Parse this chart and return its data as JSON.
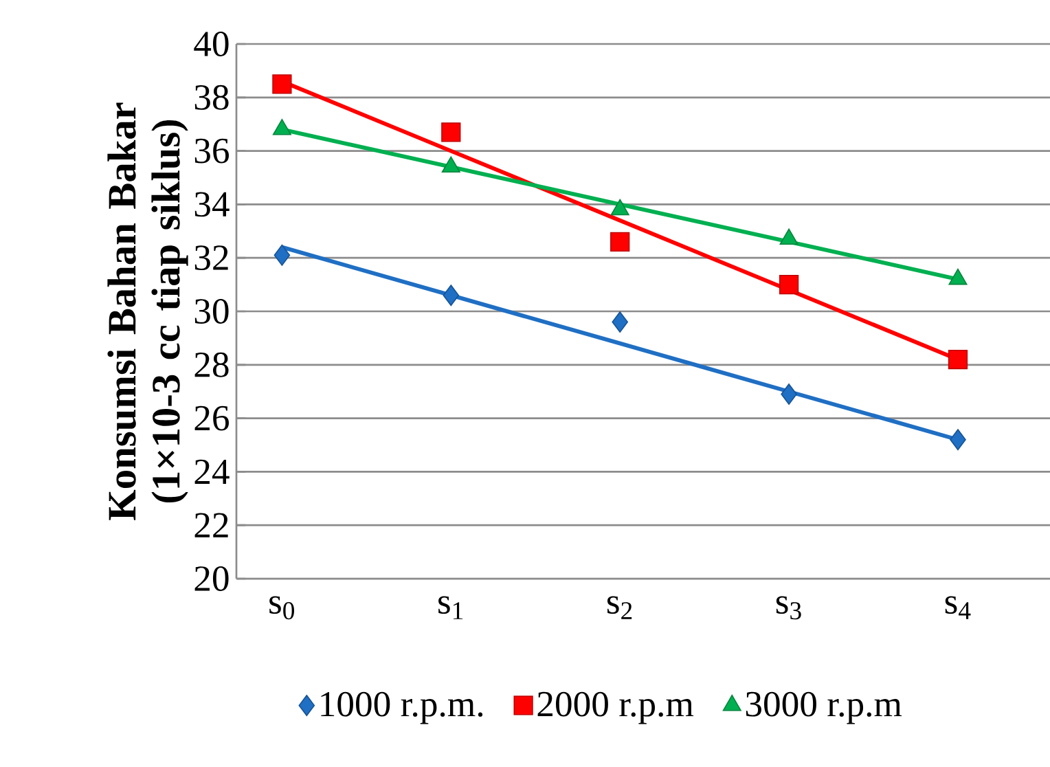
{
  "chart_data": {
    "type": "line",
    "ylabel": "Konsumsi Bahan Bakar (1×10-3 cc tiap siklus)",
    "categories": [
      "s$_{0}$",
      "s$_{1}$",
      "s$_{2}$",
      "s$_{3}$",
      "s$_{4}$"
    ],
    "ylim": [
      20,
      40
    ],
    "yticks": [
      20,
      22,
      24,
      26,
      28,
      30,
      32,
      34,
      36,
      38,
      40
    ],
    "grid": "y",
    "legend": "bottom",
    "series": [
      {
        "name": "1000 r.p.m.",
        "type": "scatter",
        "marker": "diamond",
        "color": "#1f6fc4",
        "values": [
          32.1,
          30.6,
          29.6,
          26.9,
          25.2
        ]
      },
      {
        "name": "2000 r.p.m",
        "type": "scatter",
        "marker": "square",
        "color": "#ff0000",
        "values": [
          38.5,
          36.7,
          32.6,
          31.0,
          28.2
        ]
      },
      {
        "name": "3000 r.p.m",
        "type": "scatter",
        "marker": "triangle",
        "color": "#00b050",
        "values": [
          36.8,
          35.4,
          33.8,
          32.7,
          31.2
        ]
      },
      {
        "type": "line",
        "marker": "none",
        "line_style": "solid",
        "color": "#1f6fc4",
        "values": [
          32.4,
          30.6,
          28.8,
          27.0,
          25.2
        ]
      },
      {
        "type": "line",
        "marker": "none",
        "line_style": "solid",
        "color": "#ff0000",
        "values": [
          38.6,
          36.0,
          33.4,
          30.8,
          28.2
        ]
      },
      {
        "type": "line",
        "marker": "none",
        "line_style": "solid",
        "color": "#00b050",
        "values": [
          36.8,
          35.4,
          34.0,
          32.6,
          31.2
        ]
      }
    ]
  }
}
